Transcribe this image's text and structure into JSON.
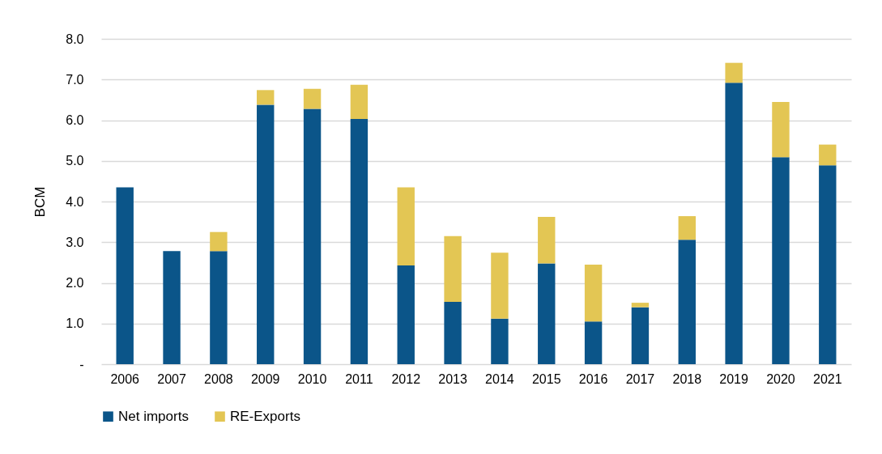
{
  "chart_data": {
    "type": "bar",
    "stacked": true,
    "ylabel": "BCM",
    "categories": [
      "2006",
      "2007",
      "2008",
      "2009",
      "2010",
      "2011",
      "2012",
      "2013",
      "2014",
      "2015",
      "2016",
      "2017",
      "2018",
      "2019",
      "2020",
      "2021"
    ],
    "series": [
      {
        "name": "Net imports",
        "color": "#0b5589",
        "values": [
          4.35,
          2.78,
          2.78,
          6.38,
          6.28,
          6.03,
          2.43,
          1.53,
          1.12,
          2.48,
          1.05,
          1.4,
          3.06,
          6.92,
          5.09,
          4.89
        ]
      },
      {
        "name": "RE-Exports",
        "color": "#e3c654",
        "values": [
          0,
          0,
          0.47,
          0.36,
          0.49,
          0.84,
          1.92,
          1.62,
          1.62,
          1.14,
          1.4,
          0.11,
          0.58,
          0.49,
          1.36,
          0.51
        ]
      }
    ],
    "ylim": [
      0,
      8
    ],
    "yticks": [
      {
        "value": 0,
        "label": "-"
      },
      {
        "value": 1,
        "label": "1.0"
      },
      {
        "value": 2,
        "label": "2.0"
      },
      {
        "value": 3,
        "label": "3.0"
      },
      {
        "value": 4,
        "label": "4.0"
      },
      {
        "value": 5,
        "label": "5.0"
      },
      {
        "value": 6,
        "label": "6.0"
      },
      {
        "value": 7,
        "label": "7.0"
      },
      {
        "value": 8,
        "label": "8.0"
      }
    ],
    "grid": "y",
    "legend": "bottom"
  }
}
